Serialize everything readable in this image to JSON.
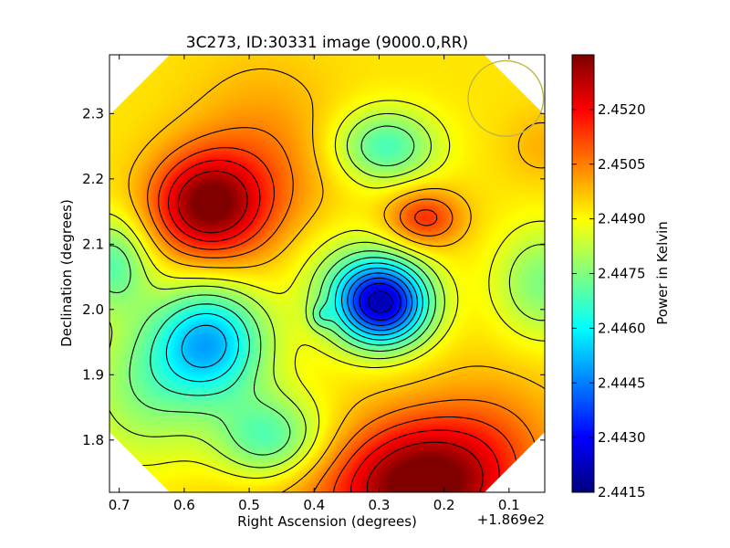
{
  "chart_data": {
    "type": "heatmap",
    "title": "3C273, ID:30331 image (9000.0,RR)",
    "xlabel": "Right Ascension (degrees)",
    "ylabel": "Declination (degrees)",
    "x_offset_label": "+1.869e2",
    "xlim": [
      0.715,
      0.045
    ],
    "ylim": [
      1.72,
      2.39
    ],
    "x_ticks": [
      0.7,
      0.6,
      0.5,
      0.4,
      0.3,
      0.2,
      0.1
    ],
    "x_tick_labels": [
      "0.7",
      "0.6",
      "0.5",
      "0.4",
      "0.3",
      "0.2",
      "0.1"
    ],
    "y_ticks": [
      1.8,
      1.9,
      2.0,
      2.1,
      2.2,
      2.3
    ],
    "y_tick_labels": [
      "1.8",
      "1.9",
      "2.0",
      "2.1",
      "2.2",
      "2.3"
    ],
    "colorbar": {
      "label": "Power in Kelvin",
      "range": [
        2.4415,
        2.4535
      ],
      "ticks": [
        2.4415,
        2.443,
        2.4445,
        2.446,
        2.4475,
        2.449,
        2.4505,
        2.452
      ],
      "tick_labels": [
        "2.4415",
        "2.4430",
        "2.4445",
        "2.4460",
        "2.4475",
        "2.4490",
        "2.4505",
        "2.4520"
      ]
    },
    "background_level": 2.4493,
    "components": [
      {
        "x": 0.565,
        "y": 2.16,
        "amp": 0.004,
        "sx": 0.06,
        "sy": 0.055
      },
      {
        "x": 0.48,
        "y": 2.22,
        "amp": 0.0012,
        "sx": 0.08,
        "sy": 0.1
      },
      {
        "x": 0.235,
        "y": 1.73,
        "amp": 0.0045,
        "sx": 0.09,
        "sy": 0.07
      },
      {
        "x": 0.12,
        "y": 1.8,
        "amp": 0.001,
        "sx": 0.08,
        "sy": 0.08
      },
      {
        "x": 0.44,
        "y": 1.72,
        "amp": 0.0008,
        "sx": 0.1,
        "sy": 0.05
      },
      {
        "x": 0.23,
        "y": 2.14,
        "amp": 0.0022,
        "sx": 0.04,
        "sy": 0.03
      },
      {
        "x": 0.295,
        "y": 2.01,
        "amp": -0.0068,
        "sx": 0.05,
        "sy": 0.045
      },
      {
        "x": 0.36,
        "y": 2.05,
        "amp": -0.001,
        "sx": 0.06,
        "sy": 0.06
      },
      {
        "x": 0.56,
        "y": 1.95,
        "amp": -0.004,
        "sx": 0.06,
        "sy": 0.06
      },
      {
        "x": 0.47,
        "y": 1.8,
        "amp": -0.0025,
        "sx": 0.06,
        "sy": 0.05
      },
      {
        "x": 0.66,
        "y": 1.88,
        "amp": -0.0016,
        "sx": 0.07,
        "sy": 0.08
      },
      {
        "x": 0.71,
        "y": 2.07,
        "amp": -0.0022,
        "sx": 0.04,
        "sy": 0.05
      },
      {
        "x": 0.29,
        "y": 2.25,
        "amp": -0.0025,
        "sx": 0.055,
        "sy": 0.04
      },
      {
        "x": 0.05,
        "y": 2.04,
        "amp": -0.0018,
        "sx": 0.05,
        "sy": 0.06
      },
      {
        "x": 0.05,
        "y": 2.25,
        "amp": 0.0006,
        "sx": 0.04,
        "sy": 0.04
      },
      {
        "x": 0.39,
        "y": 1.99,
        "amp": -0.001,
        "sx": 0.012,
        "sy": 0.014
      }
    ],
    "contour_levels": [
      2.4425,
      2.4433,
      2.444,
      2.4447,
      2.4454,
      2.4461,
      2.4468,
      2.4475,
      2.4482,
      2.4488,
      2.4497,
      2.4505,
      2.4512,
      2.4519,
      2.4526
    ],
    "beam": {
      "x": 0.105,
      "y": 2.323,
      "r": 0.058,
      "color": "#bfb640"
    }
  }
}
